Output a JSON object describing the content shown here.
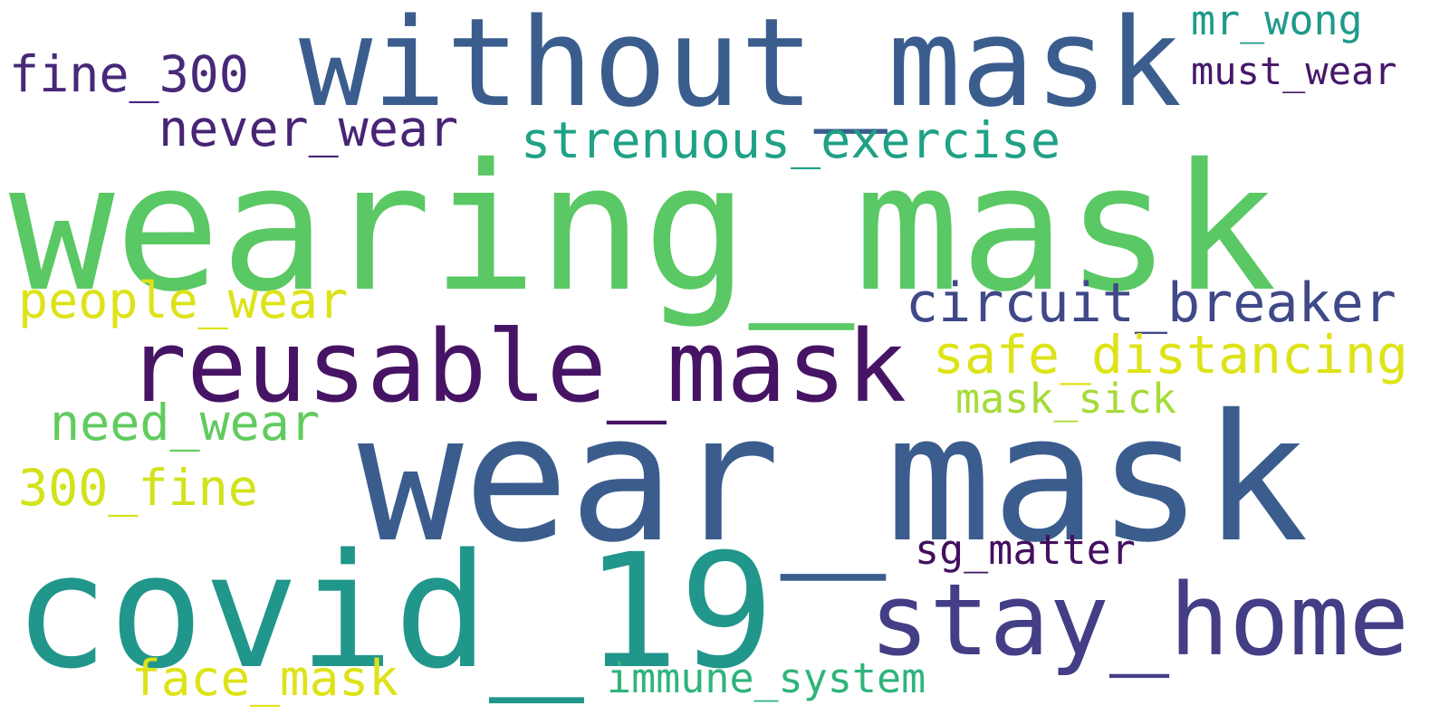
{
  "words": [
    {
      "id": "wearing-mask",
      "text": "wearing_mask",
      "color": "#5ac864"
    },
    {
      "id": "wear-mask",
      "text": "wear_mask",
      "color": "#3b5d8e"
    },
    {
      "id": "without-mask",
      "text": "without_mask",
      "color": "#3b5d8e"
    },
    {
      "id": "covid-19",
      "text": "covid_19",
      "color": "#21968b"
    },
    {
      "id": "reusable-mask",
      "text": "reusable_mask",
      "color": "#471465"
    },
    {
      "id": "stay-home",
      "text": "stay_home",
      "color": "#433e85"
    },
    {
      "id": "circuit-breaker",
      "text": "circuit_breaker",
      "color": "#3f4888"
    },
    {
      "id": "safe-distancing",
      "text": "safe_distancing",
      "color": "#dde318"
    },
    {
      "id": "strenuous-exercise",
      "text": "strenuous_exercise",
      "color": "#1fa186"
    },
    {
      "id": "fine-300",
      "text": "fine_300",
      "color": "#482878"
    },
    {
      "id": "never-wear",
      "text": "never_wear",
      "color": "#482475"
    },
    {
      "id": "mr-wong",
      "text": "mr_wong",
      "color": "#1f9a8a"
    },
    {
      "id": "must-wear",
      "text": "must_wear",
      "color": "#46186b"
    },
    {
      "id": "people-wear",
      "text": "people_wear",
      "color": "#dde318"
    },
    {
      "id": "need-wear",
      "text": "need_wear",
      "color": "#62cb5f"
    },
    {
      "id": "300-fine",
      "text": "300_fine",
      "color": "#d2e21b"
    },
    {
      "id": "mask-sick",
      "text": "mask_sick",
      "color": "#a5db36"
    },
    {
      "id": "sg-matter",
      "text": "sg_matter",
      "color": "#440f5e"
    },
    {
      "id": "face-mask",
      "text": "face_mask",
      "color": "#dde318"
    },
    {
      "id": "immune-system",
      "text": "immune_system",
      "color": "#2fb47c"
    }
  ]
}
